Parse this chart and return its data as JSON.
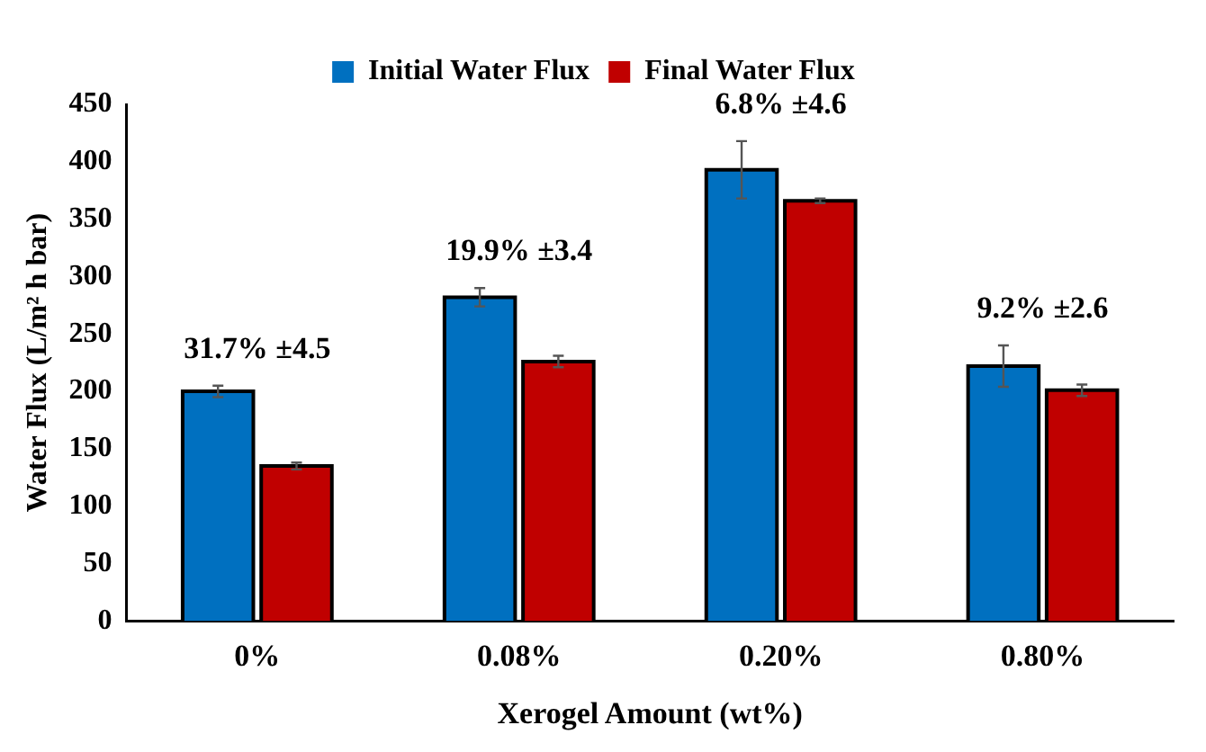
{
  "chart_data": {
    "type": "bar",
    "xlabel": "Xerogel Amount (wt%)",
    "ylabel": "Water Flux (L/m² h bar)",
    "categories": [
      "0%",
      "0.08%",
      "0.20%",
      "0.80%"
    ],
    "series": [
      {
        "name": "Initial Water Flux",
        "color": "#0070c0",
        "values": [
          200,
          282,
          393,
          222
        ],
        "errors": [
          5,
          8,
          25,
          18
        ]
      },
      {
        "name": "Final Water Flux",
        "color": "#c00000",
        "values": [
          135,
          226,
          366,
          201
        ],
        "errors": [
          3,
          5,
          2,
          5
        ]
      }
    ],
    "ylim": [
      0,
      450
    ],
    "yticks": [
      0,
      50,
      100,
      150,
      200,
      250,
      300,
      350,
      400,
      450
    ],
    "grid": false,
    "legend": "top",
    "annotations": [
      "31.7% ±4.5",
      "19.9% ±3.4",
      "6.8% ±4.6",
      "9.2% ±2.6"
    ]
  }
}
